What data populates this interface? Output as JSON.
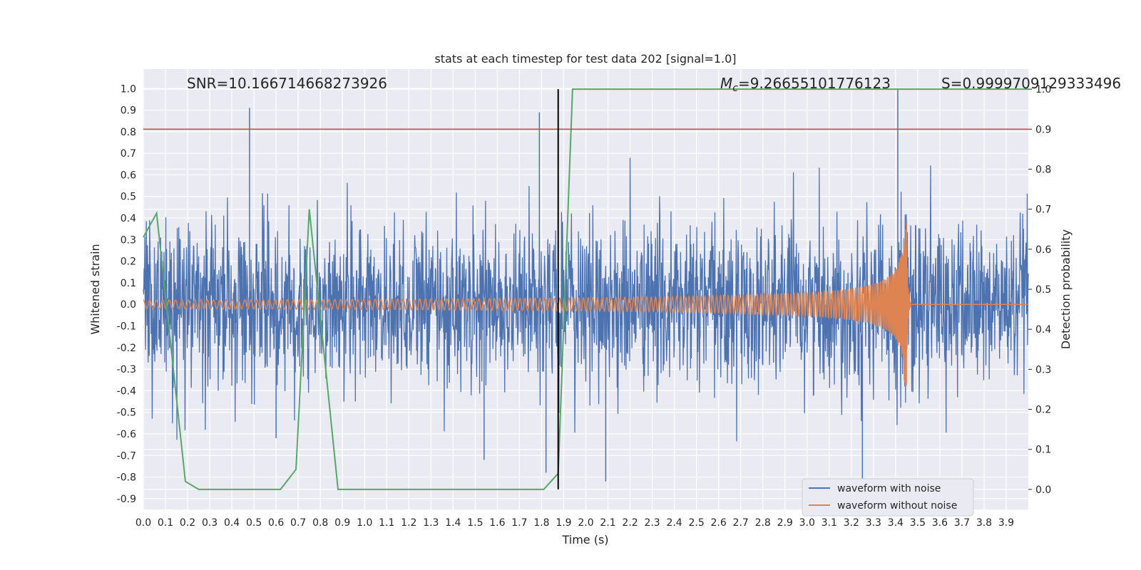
{
  "chart_data": {
    "type": "line",
    "title": "stats at each timestep for test data 202 [signal=1.0]",
    "xlabel": "Time (s)",
    "ylabel_left": "Whitened strain",
    "ylabel_right": "Detection probability",
    "xlim": [
      0.0,
      4.0
    ],
    "ylim_left": [
      -0.95,
      1.09
    ],
    "ylim_right": [
      -0.05,
      1.05
    ],
    "x_ticks": [
      "0.0",
      "0.1",
      "0.2",
      "0.3",
      "0.4",
      "0.5",
      "0.6",
      "0.7",
      "0.8",
      "0.9",
      "1.0",
      "1.1",
      "1.2",
      "1.3",
      "1.4",
      "1.5",
      "1.6",
      "1.7",
      "1.8",
      "1.9",
      "2.0",
      "2.1",
      "2.2",
      "2.3",
      "2.4",
      "2.5",
      "2.6",
      "2.7",
      "2.8",
      "2.9",
      "3.0",
      "3.1",
      "3.2",
      "3.3",
      "3.4",
      "3.5",
      "3.6",
      "3.7",
      "3.8",
      "3.9"
    ],
    "y_ticks_left": [
      "1.0",
      "0.9",
      "0.8",
      "0.7",
      "0.6",
      "0.5",
      "0.4",
      "0.3",
      "0.2",
      "0.1",
      "0.0",
      "-0.1",
      "-0.2",
      "-0.3",
      "-0.4",
      "-0.5",
      "-0.6",
      "-0.7",
      "-0.8",
      "-0.9"
    ],
    "y_ticks_right": [
      "1.0",
      "0.9",
      "0.8",
      "0.7",
      "0.6",
      "0.5",
      "0.4",
      "0.3",
      "0.2",
      "0.1",
      "0.0"
    ],
    "grid": true,
    "legend_position": "lower-right",
    "annotations": {
      "snr": "SNR=10.166714668273926",
      "mc": "=9.26655101776123",
      "mc_symbol": "M",
      "mc_subscript": "c",
      "s": "S=0.9999709129333496"
    },
    "threshold_line": {
      "y_right": 0.9,
      "color": "#c44e52"
    },
    "vertical_marker": {
      "x": 1.875,
      "color": "#000000"
    },
    "series": [
      {
        "name": "waveform with noise",
        "axis": "left",
        "color": "#4c72b0",
        "approx_amplitude": 0.45,
        "notable_peaks": [
          [
            0.48,
            0.91
          ],
          [
            1.79,
            0.89
          ],
          [
            3.41,
            1.0
          ],
          [
            3.25,
            -0.81
          ],
          [
            2.09,
            -0.82
          ],
          [
            1.82,
            -0.78
          ],
          [
            0.6,
            -0.62
          ],
          [
            1.54,
            -0.72
          ]
        ]
      },
      {
        "name": "waveform without noise",
        "axis": "left",
        "color": "#dd8452",
        "chirp_start_amplitude": 0.02,
        "chirp_peak": [
          3.44,
          0.38
        ],
        "merger_time": 3.45
      },
      {
        "name": "",
        "axis": "right",
        "color": "#55a868",
        "x": [
          0.0,
          0.06,
          0.19,
          0.25,
          0.62,
          0.69,
          0.75,
          0.88,
          0.94,
          1.81,
          1.875,
          1.94,
          4.0
        ],
        "values": [
          0.63,
          0.69,
          0.02,
          0.0,
          0.0,
          0.05,
          0.7,
          0.0,
          0.0,
          0.0,
          0.04,
          1.0,
          1.0
        ]
      }
    ]
  }
}
